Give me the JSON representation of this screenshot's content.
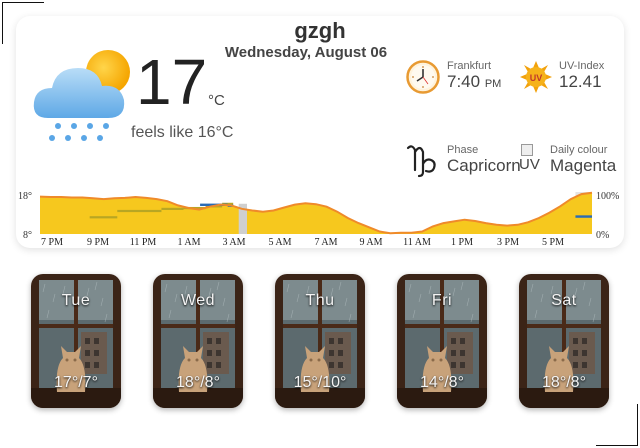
{
  "header": {
    "location": "gzgh",
    "date": "Wednesday, August 06"
  },
  "current": {
    "temperature": "17",
    "unit": "°C",
    "feels_like": "feels like 16°C",
    "icon": "rain-cloud-sun-icon"
  },
  "info": {
    "city_label": "Frankfurt",
    "time": "7:40",
    "ampm": "PM",
    "uv_label": "UV-Index",
    "uv_value": "12.41",
    "uv_badge": "UV",
    "phase_label": "Phase",
    "phase_value": "Capricorn",
    "colour_label": "Daily colour",
    "colour_value": "Magenta",
    "colour_image_alt": "UV"
  },
  "chart_data": {
    "type": "area",
    "left_axis": {
      "max_label": "18°",
      "min_label": "8°",
      "ylim": [
        8,
        18
      ]
    },
    "right_axis": {
      "max_label": "100%",
      "min_label": "0%",
      "ylim": [
        0,
        100
      ]
    },
    "x_labels": [
      "7 PM",
      "9 PM",
      "11 PM",
      "1 AM",
      "3 AM",
      "5 AM",
      "7 AM",
      "9 AM",
      "11 AM",
      "1 PM",
      "3 PM",
      "5 PM"
    ],
    "temperature": [
      16.9,
      16.8,
      16.8,
      16.7,
      16.7,
      16.5,
      16.3,
      16.5,
      16.6,
      16.8,
      16.6,
      16.3,
      15.8,
      14.8,
      14.2,
      13.8,
      14.5,
      15.0,
      14.8,
      14.0,
      13.6,
      13.3,
      13.6,
      14.3,
      15.0,
      15.3,
      15.1,
      14.5,
      13.3,
      11.8,
      10.6,
      9.6,
      8.6,
      8.2,
      8.3,
      8.3,
      8.6,
      9.8,
      10.6,
      11.0,
      11.4,
      11.1,
      10.6,
      10.2,
      10.0,
      10.2,
      10.8,
      11.8,
      13.1,
      14.6,
      16.3,
      17.5,
      17.8
    ],
    "precip_band": [
      0,
      0,
      0,
      0,
      0,
      0,
      0,
      0,
      0,
      0,
      0,
      0,
      0,
      0,
      0,
      0,
      0,
      0,
      0,
      0,
      0,
      0,
      0,
      0,
      0,
      0,
      0,
      0,
      0,
      0,
      0,
      0,
      0,
      0,
      0,
      0,
      0,
      0,
      0,
      0,
      0,
      0,
      0,
      0,
      0,
      0,
      0,
      0,
      0,
      0,
      0,
      0,
      0
    ],
    "precip_steps": [
      {
        "from": 0.09,
        "to": 0.14,
        "level": 40
      },
      {
        "from": 0.14,
        "to": 0.22,
        "level": 55
      },
      {
        "from": 0.22,
        "to": 0.26,
        "level": 60
      },
      {
        "from": 0.26,
        "to": 0.3,
        "level": 62
      },
      {
        "from": 0.3,
        "to": 0.33,
        "level": 66
      },
      {
        "from": 0.33,
        "to": 0.35,
        "level": 72
      }
    ],
    "rain_marks": [
      {
        "from": 0.29,
        "to": 0.34,
        "level": 70
      },
      {
        "from": 0.34,
        "to": 0.35,
        "level": 68
      },
      {
        "from": 0.97,
        "to": 1.0,
        "level": 42
      }
    ],
    "gray_block": {
      "from": 0.36,
      "to": 0.375,
      "level": 72
    }
  },
  "forecast": [
    {
      "day": "Tue",
      "range": "17°/7°"
    },
    {
      "day": "Wed",
      "range": "18°/8°"
    },
    {
      "day": "Thu",
      "range": "15°/10°"
    },
    {
      "day": "Fri",
      "range": "14°/8°"
    },
    {
      "day": "Sat",
      "range": "18°/8°"
    }
  ]
}
